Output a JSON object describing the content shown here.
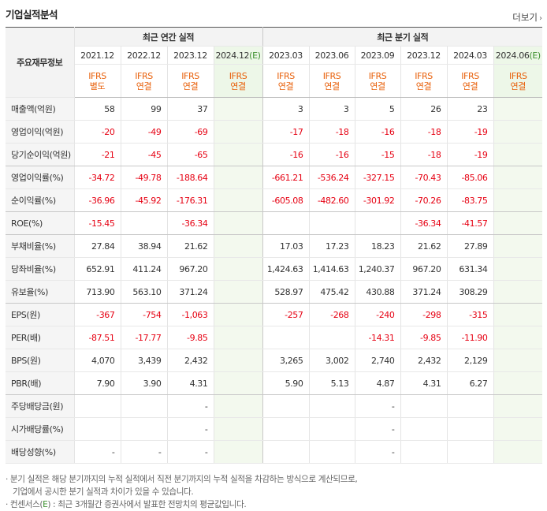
{
  "title": "기업실적분석",
  "more_label": "더보기",
  "more_chevron": "›",
  "header": {
    "row_label": "주요재무정보",
    "annual_label": "최근 연간 실적",
    "quarter_label": "최근 분기 실적",
    "annual_dates": [
      "2021.12",
      "2022.12",
      "2023.12",
      "2024.12"
    ],
    "annual_est_mark": "(E)",
    "quarter_dates": [
      "2023.03",
      "2023.06",
      "2023.09",
      "2023.12",
      "2024.03",
      "2024.06"
    ],
    "quarter_est_mark": "(E)",
    "ifrs_top": "IFRS",
    "ifrs_annual": [
      "별도",
      "연결",
      "연결",
      "연결"
    ],
    "ifrs_quarter": [
      "연결",
      "연결",
      "연결",
      "연결",
      "연결",
      "연결"
    ]
  },
  "rows": [
    {
      "label": "매출액(억원)",
      "annual": [
        "58",
        "99",
        "37",
        ""
      ],
      "quarter": [
        "3",
        "3",
        "5",
        "26",
        "23",
        ""
      ]
    },
    {
      "label": "영업이익(억원)",
      "annual": [
        "-20",
        "-49",
        "-69",
        ""
      ],
      "quarter": [
        "-17",
        "-18",
        "-16",
        "-18",
        "-19",
        ""
      ]
    },
    {
      "label": "당기순이익(억원)",
      "annual": [
        "-21",
        "-45",
        "-65",
        ""
      ],
      "quarter": [
        "-16",
        "-16",
        "-15",
        "-18",
        "-19",
        ""
      ]
    },
    {
      "label": "영업이익률(%)",
      "annual": [
        "-34.72",
        "-49.78",
        "-188.64",
        ""
      ],
      "quarter": [
        "-661.21",
        "-536.24",
        "-327.15",
        "-70.43",
        "-85.06",
        ""
      ]
    },
    {
      "label": "순이익률(%)",
      "annual": [
        "-36.96",
        "-45.92",
        "-176.31",
        ""
      ],
      "quarter": [
        "-605.08",
        "-482.60",
        "-301.92",
        "-70.26",
        "-83.75",
        ""
      ]
    },
    {
      "label": "ROE(%)",
      "annual": [
        "-15.45",
        "",
        "-36.34",
        ""
      ],
      "quarter": [
        "",
        "",
        "",
        "-36.34",
        "-41.57",
        ""
      ]
    },
    {
      "label": "부채비율(%)",
      "annual": [
        "27.84",
        "38.94",
        "21.62",
        ""
      ],
      "quarter": [
        "17.03",
        "17.23",
        "18.23",
        "21.62",
        "27.89",
        ""
      ]
    },
    {
      "label": "당좌비율(%)",
      "annual": [
        "652.91",
        "411.24",
        "967.20",
        ""
      ],
      "quarter": [
        "1,424.63",
        "1,414.63",
        "1,240.37",
        "967.20",
        "631.34",
        ""
      ]
    },
    {
      "label": "유보율(%)",
      "annual": [
        "713.90",
        "563.10",
        "371.24",
        ""
      ],
      "quarter": [
        "528.97",
        "475.42",
        "430.88",
        "371.24",
        "308.29",
        ""
      ]
    },
    {
      "label": "EPS(원)",
      "annual": [
        "-367",
        "-754",
        "-1,063",
        ""
      ],
      "quarter": [
        "-257",
        "-268",
        "-240",
        "-298",
        "-315",
        ""
      ]
    },
    {
      "label": "PER(배)",
      "annual": [
        "-87.51",
        "-17.77",
        "-9.85",
        ""
      ],
      "quarter": [
        "",
        "",
        "-14.31",
        "-9.85",
        "-11.90",
        ""
      ]
    },
    {
      "label": "BPS(원)",
      "annual": [
        "4,070",
        "3,439",
        "2,432",
        ""
      ],
      "quarter": [
        "3,265",
        "3,002",
        "2,740",
        "2,432",
        "2,129",
        ""
      ]
    },
    {
      "label": "PBR(배)",
      "annual": [
        "7.90",
        "3.90",
        "4.31",
        ""
      ],
      "quarter": [
        "5.90",
        "5.13",
        "4.87",
        "4.31",
        "6.27",
        ""
      ]
    },
    {
      "label": "주당배당금(원)",
      "annual": [
        "",
        "",
        "-",
        ""
      ],
      "quarter": [
        "",
        "",
        "-",
        "",
        "",
        ""
      ]
    },
    {
      "label": "시가배당률(%)",
      "annual": [
        "",
        "",
        "-",
        ""
      ],
      "quarter": [
        "",
        "",
        "-",
        "",
        "",
        ""
      ]
    },
    {
      "label": "배당성향(%)",
      "annual": [
        "-",
        "-",
        "-",
        ""
      ],
      "quarter": [
        "",
        "",
        "-",
        "",
        "",
        ""
      ]
    }
  ],
  "notes": {
    "line1": "· 분기 실적은 해당 분기까지의 누적 실적에서 직전 분기까지의 누적 실적을 차감하는 방식으로 계산되므로,",
    "line2": "기업에서 공시한 분기 실적과 차이가 있을 수 있습니다.",
    "line3_prefix": "· 컨센서스(",
    "line3_e": "E",
    "line3_suffix": ") : 최근 3개월간 증권사에서 발표한 전망치의 평균값입니다."
  },
  "colors": {
    "negative": "#e60012",
    "ifrs": "#e8610c",
    "estimate_bg": "#edf7e8",
    "estimate_mark": "#3b8f2d"
  }
}
